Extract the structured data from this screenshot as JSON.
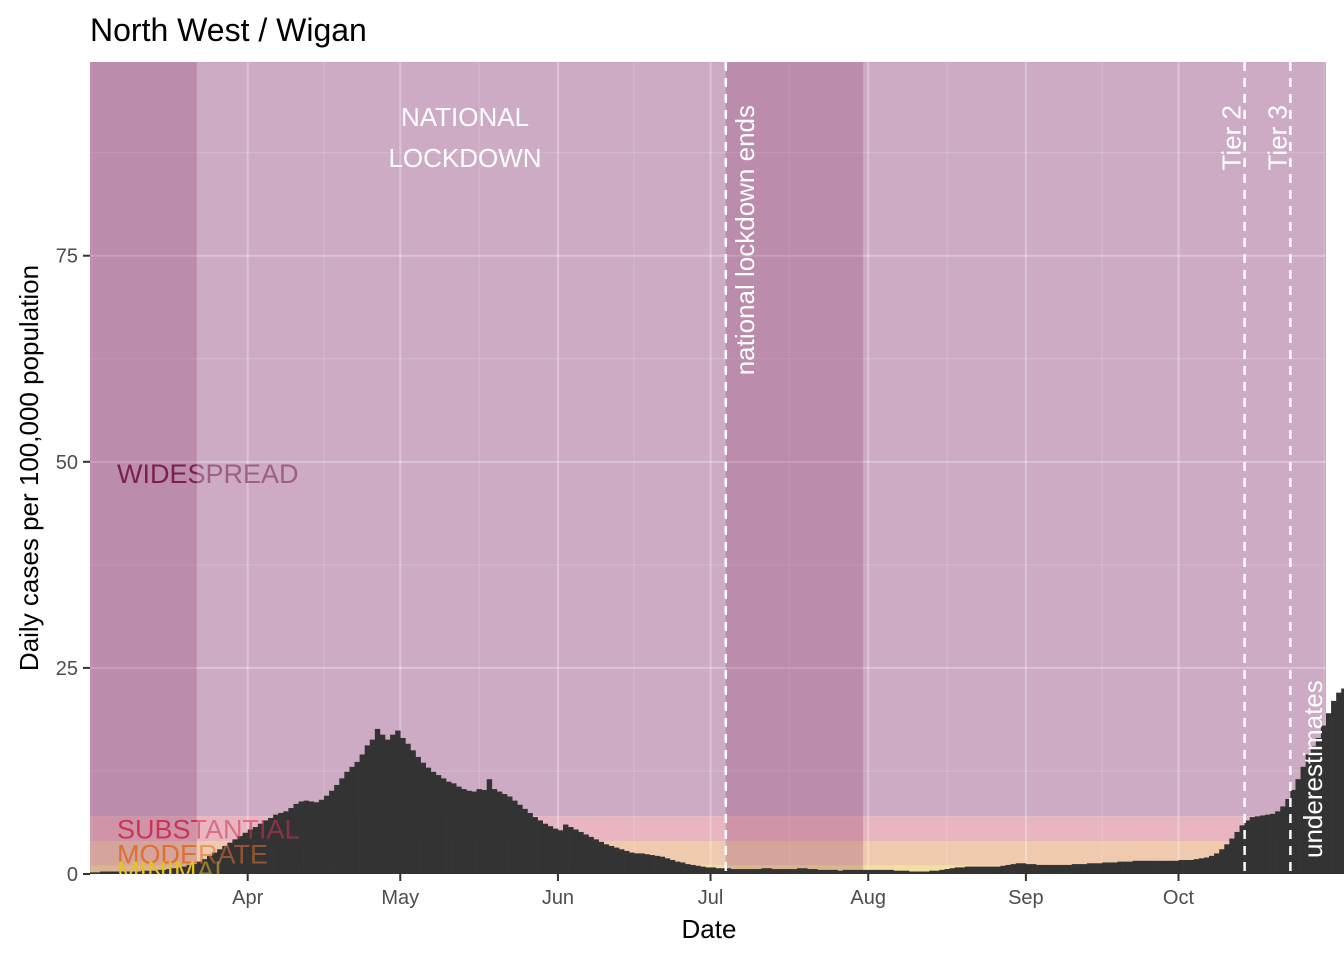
{
  "chart_data": {
    "type": "bar",
    "title": "North West / Wigan",
    "xlabel": "Date",
    "ylabel": "Daily cases per 100,000 population",
    "x_range": [
      "2020-03-01",
      "2020-10-30"
    ],
    "ylim": [
      0,
      98.5
    ],
    "y_ticks": [
      0,
      25,
      50,
      75
    ],
    "x_ticks": [
      {
        "date": "2020-04-01",
        "label": "Apr"
      },
      {
        "date": "2020-05-01",
        "label": "May"
      },
      {
        "date": "2020-06-01",
        "label": "Jun"
      },
      {
        "date": "2020-07-01",
        "label": "Jul"
      },
      {
        "date": "2020-08-01",
        "label": "Aug"
      },
      {
        "date": "2020-09-01",
        "label": "Sep"
      },
      {
        "date": "2020-10-01",
        "label": "Oct"
      }
    ],
    "grid": true,
    "bar_color": "#333333",
    "start_date": "2020-03-01",
    "values": [
      0.2,
      0.2,
      0.3,
      0.3,
      0.3,
      0.3,
      0.3,
      0.3,
      0.3,
      0.3,
      0.4,
      0.4,
      0.4,
      0.5,
      0.5,
      0.6,
      0.7,
      0.8,
      0.9,
      1.1,
      1.2,
      1.5,
      1.8,
      2.2,
      2.6,
      3.0,
      3.4,
      3.8,
      4.2,
      4.6,
      5.0,
      5.4,
      5.7,
      6.1,
      6.5,
      6.8,
      7.2,
      7.4,
      7.6,
      8.0,
      8.5,
      8.8,
      8.9,
      8.8,
      8.7,
      9.0,
      9.5,
      10.1,
      10.8,
      11.6,
      12.4,
      13.0,
      13.6,
      14.5,
      15.6,
      16.3,
      17.6,
      16.9,
      16.3,
      16.9,
      17.4,
      16.5,
      15.8,
      15.0,
      14.2,
      13.5,
      12.9,
      12.4,
      12.0,
      11.6,
      11.2,
      11.0,
      10.6,
      10.3,
      10.1,
      10.0,
      10.3,
      10.2,
      11.5,
      10.3,
      10.0,
      9.7,
      9.4,
      8.9,
      8.4,
      7.9,
      7.4,
      6.9,
      6.5,
      6.1,
      5.8,
      5.5,
      5.3,
      6.0,
      5.7,
      5.4,
      5.1,
      4.8,
      4.5,
      4.2,
      3.9,
      3.6,
      3.4,
      3.2,
      3.0,
      2.8,
      2.6,
      2.5,
      2.5,
      2.4,
      2.3,
      2.2,
      2.1,
      1.9,
      1.7,
      1.5,
      1.4,
      1.2,
      1.1,
      1.0,
      0.9,
      0.8,
      0.8,
      0.7,
      0.7,
      0.7,
      0.6,
      0.6,
      0.6,
      0.6,
      0.6,
      0.6,
      0.7,
      0.7,
      0.6,
      0.6,
      0.6,
      0.6,
      0.6,
      0.7,
      0.7,
      0.6,
      0.6,
      0.5,
      0.5,
      0.5,
      0.5,
      0.4,
      0.5,
      0.5,
      0.5,
      0.5,
      0.5,
      0.5,
      0.5,
      0.5,
      0.5,
      0.5,
      0.4,
      0.4,
      0.4,
      0.3,
      0.3,
      0.3,
      0.3,
      0.4,
      0.4,
      0.5,
      0.6,
      0.7,
      0.8,
      0.8,
      0.9,
      0.9,
      0.9,
      0.9,
      0.9,
      0.9,
      0.9,
      1.0,
      1.1,
      1.2,
      1.3,
      1.3,
      1.2,
      1.2,
      1.1,
      1.1,
      1.1,
      1.1,
      1.1,
      1.1,
      1.1,
      1.2,
      1.2,
      1.2,
      1.3,
      1.3,
      1.3,
      1.4,
      1.4,
      1.4,
      1.5,
      1.5,
      1.5,
      1.6,
      1.6,
      1.6,
      1.6,
      1.6,
      1.6,
      1.6,
      1.6,
      1.6,
      1.7,
      1.7,
      1.7,
      1.8,
      1.9,
      2.0,
      2.2,
      2.5,
      3.0,
      3.6,
      4.3,
      5.1,
      5.9,
      6.5,
      6.9,
      7.0,
      7.1,
      7.2,
      7.3,
      7.6,
      8.2,
      9.1,
      10.2,
      11.5,
      13.0,
      14.5,
      15.5,
      16.5,
      18.0,
      19.5,
      21.0,
      22.0,
      22.5,
      22.8,
      23.0,
      24.0,
      25.3,
      26.8,
      28.0,
      29.5,
      31.5,
      33.5,
      36.0,
      38.5,
      41.5,
      44.5,
      47.5,
      50.5,
      53.0,
      55.0,
      56.5,
      57.5,
      58.5,
      60.0,
      61.5,
      62.5,
      63.5,
      64.5,
      65.5,
      66.0,
      67.5,
      70.0,
      73.5,
      77.5,
      81.5,
      84.5,
      87.0,
      89.5,
      92.5,
      95.5,
      97.8,
      97.0,
      95.0,
      93.0,
      90.0,
      86.0,
      80.0,
      80.5,
      81.5,
      78.0,
      73.0
    ],
    "bands": [
      {
        "label": "WIDESPREAD",
        "from": 7,
        "to": 98.5,
        "color": "#cdabc4",
        "text_color": "#7a2050"
      },
      {
        "label": "SUBSTANTIAL",
        "from": 4,
        "to": 7,
        "color": "#e8b5c0",
        "text_color": "#cc3355"
      },
      {
        "label": "MODERATE",
        "from": 1,
        "to": 4,
        "color": "#efcaaf",
        "text_color": "#e07030"
      },
      {
        "label": "MINIMAL",
        "from": 0,
        "to": 1,
        "color": "#f3e0a0",
        "text_color": "#e8c020"
      }
    ],
    "shaded_periods": [
      {
        "from": "2020-03-01",
        "to": "2020-03-22"
      },
      {
        "from": "2020-07-04",
        "to": "2020-07-31"
      }
    ],
    "event_lines": [
      {
        "date": "2020-07-04",
        "label": "national lockdown ends"
      },
      {
        "date": "2020-10-14",
        "label": "Tier 2"
      },
      {
        "date": "2020-10-23",
        "label": "Tier 3"
      }
    ],
    "period_label": {
      "line1": "NATIONAL",
      "line2": "LOCKDOWN"
    },
    "underestimates_label": "underestimates",
    "underestimates_color": "#ff6600"
  }
}
